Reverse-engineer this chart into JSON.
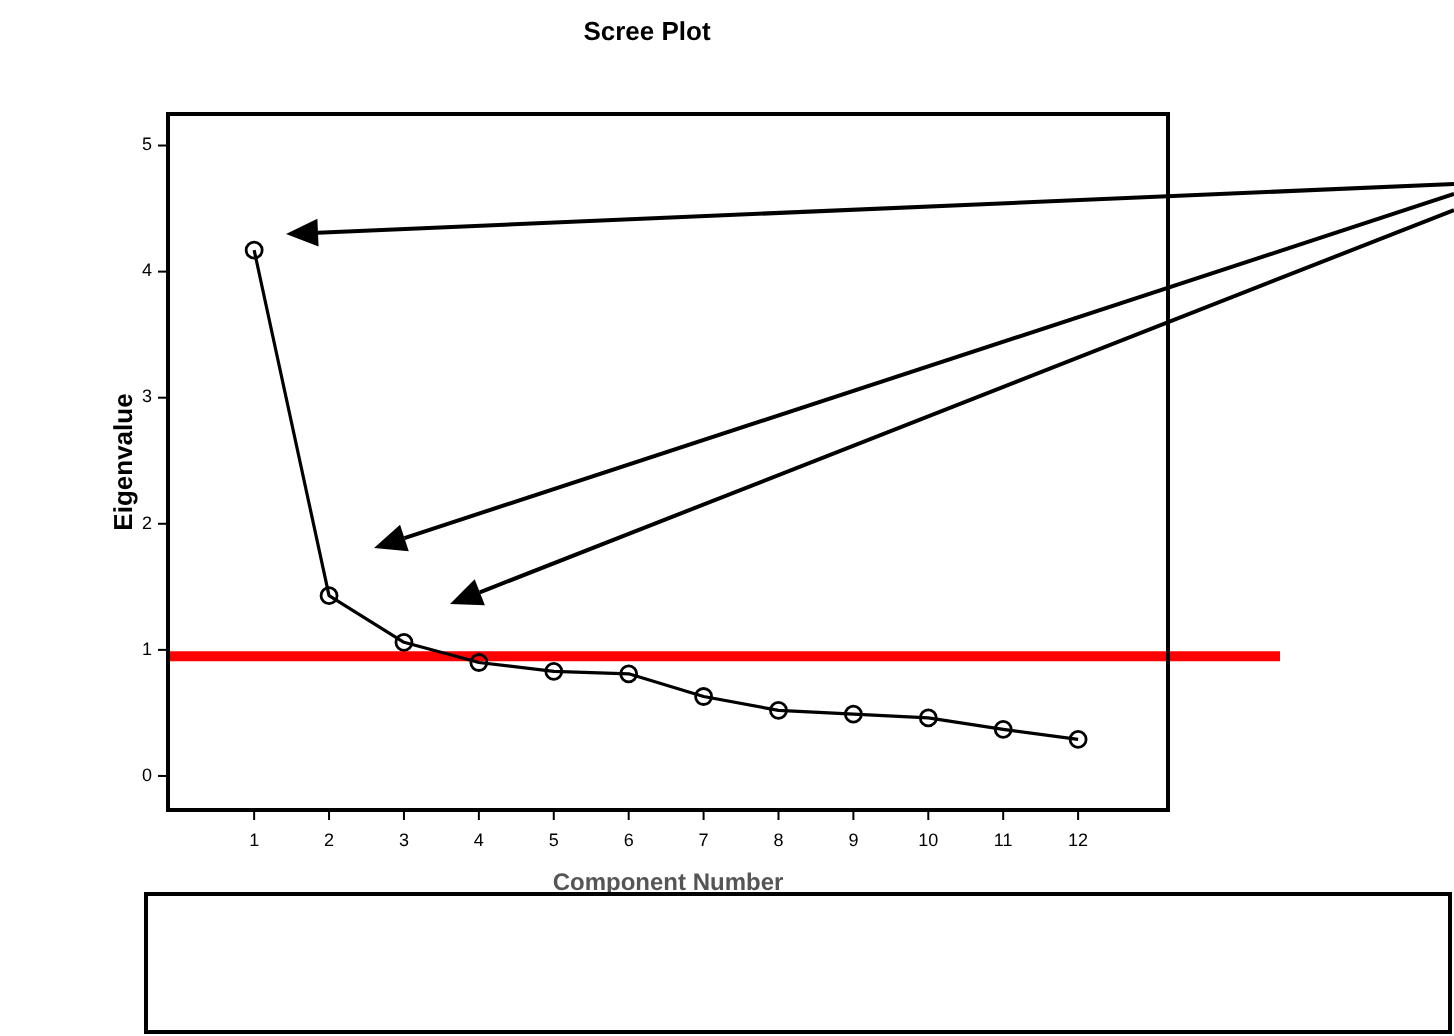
{
  "chart_data": {
    "type": "line",
    "title": "Scree Plot",
    "xlabel": "Component Number",
    "ylabel": "Eigenvalue",
    "x": [
      1,
      2,
      3,
      4,
      5,
      6,
      7,
      8,
      9,
      10,
      11,
      12
    ],
    "values": [
      4.17,
      1.43,
      1.06,
      0.9,
      0.83,
      0.81,
      0.63,
      0.52,
      0.49,
      0.46,
      0.37,
      0.29
    ],
    "color": "#000000",
    "marker": "circle",
    "line_style": "solid",
    "xlim": [
      -0.15,
      13.2
    ],
    "xticks": [
      1,
      2,
      3,
      4,
      5,
      6,
      7,
      8,
      9,
      10,
      11,
      12
    ],
    "ylim": [
      -0.27,
      5.25
    ],
    "yticks": [
      0,
      1,
      2,
      3,
      4,
      5
    ],
    "ref_lines": [
      {
        "axis": "y",
        "value": 0.95,
        "color": "#ff0000"
      }
    ]
  }
}
